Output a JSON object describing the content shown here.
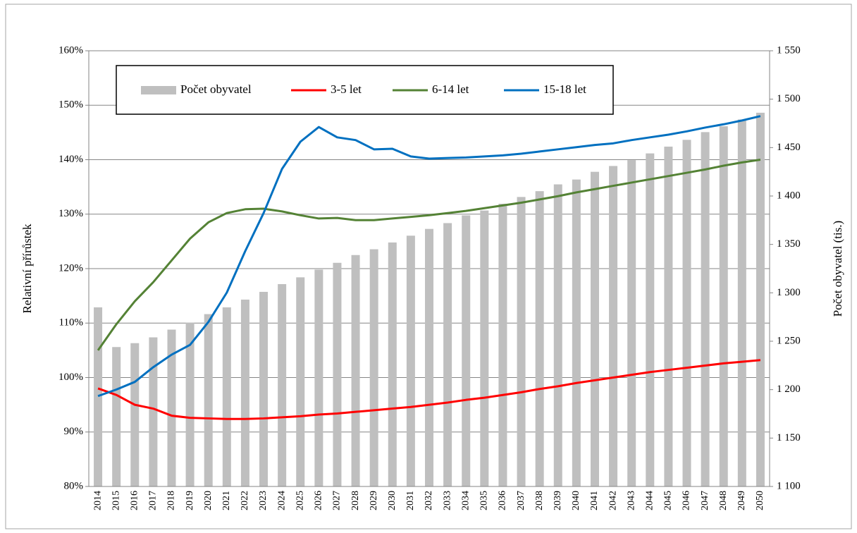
{
  "chart_data": {
    "type": "bar_line",
    "y_label": "Relativní přírůstek",
    "y2_label": "Počet obyvatel (tis.)",
    "categories": [
      "2014",
      "2015",
      "2016",
      "2017",
      "2018",
      "2019",
      "2020",
      "2021",
      "2022",
      "2023",
      "2024",
      "2025",
      "2026",
      "2027",
      "2028",
      "2029",
      "2030",
      "2031",
      "2032",
      "2033",
      "2034",
      "2035",
      "2036",
      "2037",
      "2038",
      "2039",
      "2040",
      "2041",
      "2042",
      "2043",
      "2044",
      "2045",
      "2046",
      "2047",
      "2048",
      "2049",
      "2050"
    ],
    "series": [
      {
        "name": "Počet obyvatel",
        "type": "bar",
        "axis": "y2",
        "color": "#bfbfbf",
        "values": [
          1285,
          1244,
          1248,
          1254,
          1262,
          1269,
          1278,
          1285,
          1293,
          1301,
          1309,
          1316,
          1324,
          1331,
          1339,
          1345,
          1352,
          1359,
          1366,
          1372,
          1380,
          1385,
          1392,
          1399,
          1405,
          1412,
          1417,
          1425,
          1431,
          1437,
          1444,
          1451,
          1458,
          1466,
          1472,
          1479,
          1486
        ]
      },
      {
        "name": "3-5 let",
        "type": "line",
        "color": "#ff0000",
        "values": [
          98.0,
          96.8,
          95.0,
          94.3,
          93.0,
          92.6,
          92.5,
          92.4,
          92.4,
          92.5,
          92.7,
          92.9,
          93.2,
          93.4,
          93.7,
          94.0,
          94.3,
          94.6,
          95.0,
          95.4,
          95.9,
          96.3,
          96.8,
          97.3,
          97.9,
          98.4,
          99.0,
          99.5,
          100.0,
          100.5,
          101.0,
          101.4,
          101.8,
          102.2,
          102.6,
          102.9,
          103.2
        ]
      },
      {
        "name": "6-14 let",
        "type": "line",
        "color": "#548235",
        "values": [
          105.0,
          109.8,
          114.0,
          117.5,
          121.5,
          125.5,
          128.5,
          130.2,
          130.9,
          131.0,
          130.5,
          129.8,
          129.2,
          129.3,
          128.9,
          128.9,
          129.2,
          129.5,
          129.8,
          130.2,
          130.6,
          131.1,
          131.6,
          132.1,
          132.7,
          133.3,
          134.0,
          134.6,
          135.2,
          135.8,
          136.4,
          137.0,
          137.6,
          138.2,
          138.9,
          139.5,
          140.0
        ]
      },
      {
        "name": "15-18 let",
        "type": "line",
        "color": "#0070c0",
        "values": [
          96.6,
          97.8,
          99.2,
          101.9,
          104.2,
          106.0,
          110.2,
          115.6,
          123.2,
          130.2,
          138.3,
          143.3,
          146.0,
          144.1,
          143.6,
          141.9,
          142.0,
          140.6,
          140.2,
          140.3,
          140.4,
          140.6,
          140.8,
          141.1,
          141.5,
          141.9,
          142.3,
          142.7,
          143.0,
          143.6,
          144.1,
          144.6,
          145.2,
          145.9,
          146.5,
          147.2,
          148.0
        ]
      }
    ],
    "ylim": [
      80,
      160
    ],
    "yticks": [
      {
        "value": 80,
        "label": "80%"
      },
      {
        "value": 90,
        "label": "90%"
      },
      {
        "value": 100,
        "label": "100%"
      },
      {
        "value": 110,
        "label": "110%"
      },
      {
        "value": 120,
        "label": "120%"
      },
      {
        "value": 130,
        "label": "130%"
      },
      {
        "value": 140,
        "label": "140%"
      },
      {
        "value": 150,
        "label": "150%"
      },
      {
        "value": 160,
        "label": "160%"
      }
    ],
    "y2lim": [
      1100,
      1550
    ],
    "y2ticks": [
      {
        "value": 1100,
        "label": "1 100"
      },
      {
        "value": 1150,
        "label": "1 150"
      },
      {
        "value": 1200,
        "label": "1 200"
      },
      {
        "value": 1250,
        "label": "1 250"
      },
      {
        "value": 1300,
        "label": "1 300"
      },
      {
        "value": 1350,
        "label": "1 350"
      },
      {
        "value": 1400,
        "label": "1 400"
      },
      {
        "value": 1450,
        "label": "1 450"
      },
      {
        "value": 1500,
        "label": "1 500"
      },
      {
        "value": 1550,
        "label": "1 550"
      }
    ],
    "grid": true,
    "legend": "top"
  }
}
